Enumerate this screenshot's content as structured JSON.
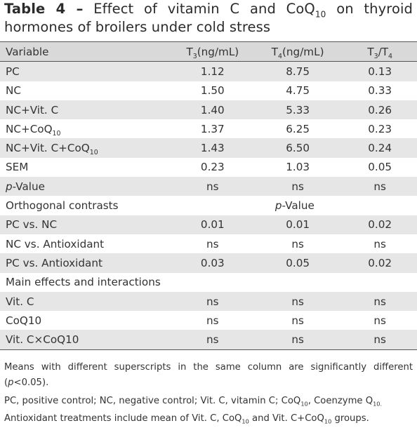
{
  "title": {
    "label": "Table 4 –",
    "text_a": "Effect of vitamin C and CoQ",
    "sub": "10",
    "text_b": "on thyroid hormones of broilers under cold stress"
  },
  "header": {
    "variable": "Variable",
    "t3_base": "T",
    "t3_sub": "3",
    "t3_unit": "(ng/mL)",
    "t4_base": "T",
    "t4_sub": "4",
    "t4_unit": "(ng/mL)",
    "ratio_a": "T",
    "ratio_a_sub": "3",
    "ratio_sep": "/T",
    "ratio_b_sub": "4"
  },
  "rows": {
    "pc": {
      "label": "PC",
      "t3": "1.12",
      "t4": "8.75",
      "ratio": "0.13"
    },
    "nc": {
      "label": "NC",
      "t3": "1.50",
      "t4": "4.75",
      "ratio": "0.33"
    },
    "ncvc": {
      "label": "NC+Vit. C",
      "t3": "1.40",
      "t4": "5.33",
      "ratio": "0.26"
    },
    "nccoq": {
      "label": "NC+CoQ",
      "sub": "10",
      "t3": "1.37",
      "t4": "6.25",
      "ratio": "0.23"
    },
    "ncboth": {
      "label": "NC+Vit. C+CoQ",
      "sub": "10",
      "t3": "1.43",
      "t4": "6.50",
      "ratio": "0.24"
    },
    "sem": {
      "label": "SEM",
      "t3": "0.23",
      "t4": "1.03",
      "ratio": "0.05"
    },
    "pval": {
      "label_i": "p",
      "label": "-Value",
      "t3": "ns",
      "t4": "ns",
      "ratio": "ns"
    }
  },
  "orthogonal": {
    "heading": "Orthogonal contrasts",
    "pvalue_i": "p",
    "pvalue": "-Value",
    "rows": [
      {
        "label": "PC vs. NC",
        "t3": "0.01",
        "t4": "0.01",
        "ratio": "0.02"
      },
      {
        "label": "NC vs. Antioxidant",
        "t3": "ns",
        "t4": "ns",
        "ratio": "ns"
      },
      {
        "label": "PC vs. Antioxidant",
        "t3": "0.03",
        "t4": "0.05",
        "ratio": "0.02"
      }
    ]
  },
  "main_effects": {
    "heading": "Main effects and interactions",
    "rows": [
      {
        "label": "Vit. C",
        "t3": "ns",
        "t4": "ns",
        "ratio": "ns"
      },
      {
        "label": "CoQ10",
        "t3": "ns",
        "t4": "ns",
        "ratio": "ns"
      },
      {
        "label": "Vit. C×CoQ10",
        "t3": "ns",
        "t4": "ns",
        "ratio": "ns"
      }
    ]
  },
  "notes": {
    "n1_a": "Means with different superscripts in the same column are significantly different (",
    "n1_i": "p",
    "n1_b": "<0.05).",
    "n2_a": "PC, positive control; NC, negative control; Vit. C, vitamin C; CoQ",
    "n2_sub1": "10",
    "n2_b": ", Coenzyme Q",
    "n2_sub2": "10.",
    "n3_a": "Antioxidant treatments include mean of Vit. C, CoQ",
    "n3_sub1": "10",
    "n3_b": " and Vit. C+CoQ",
    "n3_sub2": "10",
    "n3_c": " groups."
  }
}
